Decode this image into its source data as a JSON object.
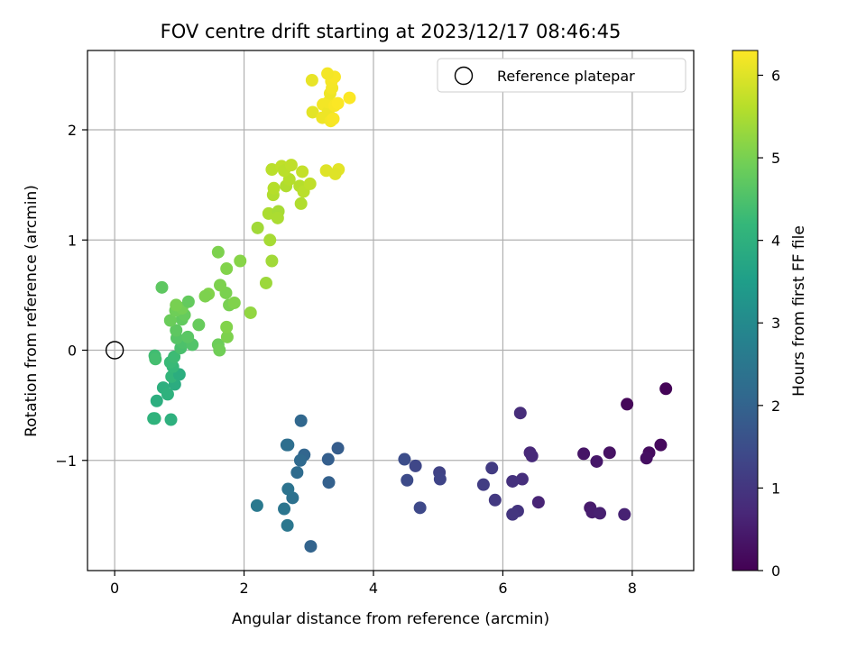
{
  "chart_data": {
    "type": "scatter",
    "title": "FOV centre drift starting at 2023/12/17 08:46:45",
    "xlabel": "Angular distance from reference (arcmin)",
    "ylabel": "Rotation from reference (arcmin)",
    "xlim": [
      -0.42,
      8.95
    ],
    "ylim": [
      -2.0,
      2.72
    ],
    "xticks": [
      0,
      2,
      4,
      6,
      8
    ],
    "xtick_labels": [
      "0",
      "2",
      "4",
      "6",
      "8"
    ],
    "yticks": [
      -1,
      0,
      1,
      2
    ],
    "ytick_labels": [
      "−1",
      "0",
      "1",
      "2"
    ],
    "grid": true,
    "legend": {
      "position": "top-right",
      "entries": [
        {
          "label": "Reference platepar",
          "marker": "open-circle"
        }
      ]
    },
    "reference_point": {
      "x": 0,
      "y": 0
    },
    "colorbar": {
      "label": "Hours from first FF file",
      "range": [
        0,
        6.3
      ],
      "ticks": [
        0,
        1,
        2,
        3,
        4,
        5,
        6
      ],
      "tick_labels": [
        "0",
        "1",
        "2",
        "3",
        "4",
        "5",
        "6"
      ],
      "colormap": "viridis",
      "colors": [
        "#440154",
        "#482878",
        "#3e4989",
        "#31688e",
        "#26828e",
        "#1f9e89",
        "#35b779",
        "#6ece58",
        "#b5de2b",
        "#fde725"
      ]
    },
    "points": [
      {
        "x": 8.52,
        "y": -0.35,
        "t": 0.05
      },
      {
        "x": 7.92,
        "y": -0.49,
        "t": 0.1
      },
      {
        "x": 8.44,
        "y": -0.86,
        "t": 0.15
      },
      {
        "x": 8.26,
        "y": -0.93,
        "t": 0.2
      },
      {
        "x": 8.22,
        "y": -0.98,
        "t": 0.25
      },
      {
        "x": 7.65,
        "y": -0.93,
        "t": 0.3
      },
      {
        "x": 7.25,
        "y": -0.94,
        "t": 0.35
      },
      {
        "x": 7.45,
        "y": -1.01,
        "t": 0.4
      },
      {
        "x": 7.35,
        "y": -1.43,
        "t": 0.45
      },
      {
        "x": 7.38,
        "y": -1.47,
        "t": 0.5
      },
      {
        "x": 7.5,
        "y": -1.48,
        "t": 0.55
      },
      {
        "x": 7.88,
        "y": -1.49,
        "t": 0.6
      },
      {
        "x": 6.55,
        "y": -1.38,
        "t": 0.65
      },
      {
        "x": 6.42,
        "y": -0.93,
        "t": 0.7
      },
      {
        "x": 6.45,
        "y": -0.96,
        "t": 0.75
      },
      {
        "x": 6.27,
        "y": -0.57,
        "t": 0.8
      },
      {
        "x": 6.3,
        "y": -1.17,
        "t": 0.85
      },
      {
        "x": 6.15,
        "y": -1.19,
        "t": 0.9
      },
      {
        "x": 6.23,
        "y": -1.46,
        "t": 0.95
      },
      {
        "x": 6.15,
        "y": -1.49,
        "t": 1.0
      },
      {
        "x": 5.88,
        "y": -1.36,
        "t": 1.05
      },
      {
        "x": 5.83,
        "y": -1.07,
        "t": 1.1
      },
      {
        "x": 5.7,
        "y": -1.22,
        "t": 1.15
      },
      {
        "x": 5.02,
        "y": -1.11,
        "t": 1.25
      },
      {
        "x": 5.03,
        "y": -1.17,
        "t": 1.3
      },
      {
        "x": 4.65,
        "y": -1.05,
        "t": 1.35
      },
      {
        "x": 4.72,
        "y": -1.43,
        "t": 1.4
      },
      {
        "x": 4.52,
        "y": -1.18,
        "t": 1.45
      },
      {
        "x": 4.48,
        "y": -0.99,
        "t": 1.5
      },
      {
        "x": 3.45,
        "y": -0.89,
        "t": 1.85
      },
      {
        "x": 3.3,
        "y": -0.99,
        "t": 1.9
      },
      {
        "x": 3.31,
        "y": -1.2,
        "t": 1.95
      },
      {
        "x": 3.03,
        "y": -1.78,
        "t": 2.0
      },
      {
        "x": 2.93,
        "y": -0.95,
        "t": 2.05
      },
      {
        "x": 2.88,
        "y": -0.64,
        "t": 2.1
      },
      {
        "x": 2.87,
        "y": -1.0,
        "t": 2.15
      },
      {
        "x": 2.82,
        "y": -1.11,
        "t": 2.2
      },
      {
        "x": 2.68,
        "y": -0.86,
        "t": 2.25
      },
      {
        "x": 2.66,
        "y": -0.86,
        "t": 2.3
      },
      {
        "x": 2.75,
        "y": -1.34,
        "t": 2.35
      },
      {
        "x": 2.68,
        "y": -1.26,
        "t": 2.4
      },
      {
        "x": 2.62,
        "y": -1.44,
        "t": 2.45
      },
      {
        "x": 2.67,
        "y": -1.59,
        "t": 2.5
      },
      {
        "x": 2.2,
        "y": -1.41,
        "t": 2.55
      },
      {
        "x": 0.62,
        "y": -0.62,
        "t": 4.1
      },
      {
        "x": 0.6,
        "y": -0.62,
        "t": 4.05
      },
      {
        "x": 0.87,
        "y": -0.63,
        "t": 4.0
      },
      {
        "x": 0.65,
        "y": -0.46,
        "t": 3.95
      },
      {
        "x": 0.75,
        "y": -0.34,
        "t": 3.98
      },
      {
        "x": 0.82,
        "y": -0.4,
        "t": 4.02
      },
      {
        "x": 0.93,
        "y": -0.31,
        "t": 3.9
      },
      {
        "x": 0.88,
        "y": -0.24,
        "t": 4.15
      },
      {
        "x": 1.0,
        "y": -0.22,
        "t": 3.92
      },
      {
        "x": 0.9,
        "y": -0.15,
        "t": 4.2
      },
      {
        "x": 0.86,
        "y": -0.11,
        "t": 4.25
      },
      {
        "x": 0.92,
        "y": -0.06,
        "t": 4.3
      },
      {
        "x": 0.62,
        "y": -0.05,
        "t": 4.35
      },
      {
        "x": 0.63,
        "y": -0.08,
        "t": 4.4
      },
      {
        "x": 1.02,
        "y": 0.02,
        "t": 4.45
      },
      {
        "x": 1.05,
        "y": 0.07,
        "t": 4.5
      },
      {
        "x": 1.2,
        "y": 0.05,
        "t": 4.55
      },
      {
        "x": 0.96,
        "y": 0.11,
        "t": 4.6
      },
      {
        "x": 1.13,
        "y": 0.12,
        "t": 4.65
      },
      {
        "x": 0.95,
        "y": 0.18,
        "t": 4.7
      },
      {
        "x": 1.04,
        "y": 0.28,
        "t": 4.75
      },
      {
        "x": 1.08,
        "y": 0.32,
        "t": 4.8
      },
      {
        "x": 0.86,
        "y": 0.27,
        "t": 4.85
      },
      {
        "x": 0.94,
        "y": 0.36,
        "t": 4.9
      },
      {
        "x": 1.04,
        "y": 0.38,
        "t": 4.95
      },
      {
        "x": 0.95,
        "y": 0.41,
        "t": 5.0
      },
      {
        "x": 1.14,
        "y": 0.44,
        "t": 4.78
      },
      {
        "x": 1.3,
        "y": 0.23,
        "t": 4.82
      },
      {
        "x": 0.73,
        "y": 0.57,
        "t": 4.7
      },
      {
        "x": 1.6,
        "y": 0.05,
        "t": 4.88
      },
      {
        "x": 1.62,
        "y": 0.0,
        "t": 4.92
      },
      {
        "x": 1.74,
        "y": 0.12,
        "t": 5.05
      },
      {
        "x": 1.73,
        "y": 0.21,
        "t": 5.1
      },
      {
        "x": 1.77,
        "y": 0.41,
        "t": 5.0
      },
      {
        "x": 1.85,
        "y": 0.43,
        "t": 5.08
      },
      {
        "x": 1.72,
        "y": 0.52,
        "t": 5.02
      },
      {
        "x": 1.63,
        "y": 0.59,
        "t": 5.05
      },
      {
        "x": 1.45,
        "y": 0.51,
        "t": 5.1
      },
      {
        "x": 1.4,
        "y": 0.49,
        "t": 5.05
      },
      {
        "x": 1.73,
        "y": 0.74,
        "t": 5.1
      },
      {
        "x": 1.94,
        "y": 0.81,
        "t": 5.15
      },
      {
        "x": 1.6,
        "y": 0.89,
        "t": 5.05
      },
      {
        "x": 2.1,
        "y": 0.34,
        "t": 5.25
      },
      {
        "x": 2.34,
        "y": 0.61,
        "t": 5.35
      },
      {
        "x": 2.43,
        "y": 0.81,
        "t": 5.4
      },
      {
        "x": 2.4,
        "y": 1.0,
        "t": 5.45
      },
      {
        "x": 2.21,
        "y": 1.11,
        "t": 5.4
      },
      {
        "x": 2.38,
        "y": 1.24,
        "t": 5.5
      },
      {
        "x": 2.53,
        "y": 1.26,
        "t": 5.45
      },
      {
        "x": 2.52,
        "y": 1.2,
        "t": 5.5
      },
      {
        "x": 2.45,
        "y": 1.41,
        "t": 5.55
      },
      {
        "x": 2.46,
        "y": 1.47,
        "t": 5.6
      },
      {
        "x": 2.43,
        "y": 1.64,
        "t": 5.65
      },
      {
        "x": 2.65,
        "y": 1.49,
        "t": 5.55
      },
      {
        "x": 2.7,
        "y": 1.55,
        "t": 5.6
      },
      {
        "x": 2.58,
        "y": 1.67,
        "t": 5.7
      },
      {
        "x": 2.62,
        "y": 1.63,
        "t": 5.65
      },
      {
        "x": 2.73,
        "y": 1.68,
        "t": 5.7
      },
      {
        "x": 2.86,
        "y": 1.49,
        "t": 5.6
      },
      {
        "x": 2.92,
        "y": 1.44,
        "t": 5.65
      },
      {
        "x": 2.88,
        "y": 1.33,
        "t": 5.55
      },
      {
        "x": 3.02,
        "y": 1.51,
        "t": 5.7
      },
      {
        "x": 2.9,
        "y": 1.62,
        "t": 5.75
      },
      {
        "x": 3.27,
        "y": 1.63,
        "t": 6.0
      },
      {
        "x": 3.46,
        "y": 1.64,
        "t": 6.05
      },
      {
        "x": 3.41,
        "y": 1.6,
        "t": 6.0
      },
      {
        "x": 3.05,
        "y": 2.45,
        "t": 6.1
      },
      {
        "x": 3.06,
        "y": 2.16,
        "t": 6.05
      },
      {
        "x": 3.21,
        "y": 2.11,
        "t": 6.15
      },
      {
        "x": 3.22,
        "y": 2.23,
        "t": 6.2
      },
      {
        "x": 3.3,
        "y": 2.16,
        "t": 6.15
      },
      {
        "x": 3.34,
        "y": 2.08,
        "t": 6.2
      },
      {
        "x": 3.38,
        "y": 2.1,
        "t": 6.25
      },
      {
        "x": 3.3,
        "y": 2.25,
        "t": 6.2
      },
      {
        "x": 3.33,
        "y": 2.33,
        "t": 6.15
      },
      {
        "x": 3.36,
        "y": 2.38,
        "t": 6.2
      },
      {
        "x": 3.4,
        "y": 2.22,
        "t": 6.25
      },
      {
        "x": 3.45,
        "y": 2.24,
        "t": 6.28
      },
      {
        "x": 3.35,
        "y": 2.44,
        "t": 6.22
      },
      {
        "x": 3.4,
        "y": 2.48,
        "t": 6.25
      },
      {
        "x": 3.29,
        "y": 2.51,
        "t": 6.2
      },
      {
        "x": 3.63,
        "y": 2.29,
        "t": 6.28
      }
    ]
  }
}
